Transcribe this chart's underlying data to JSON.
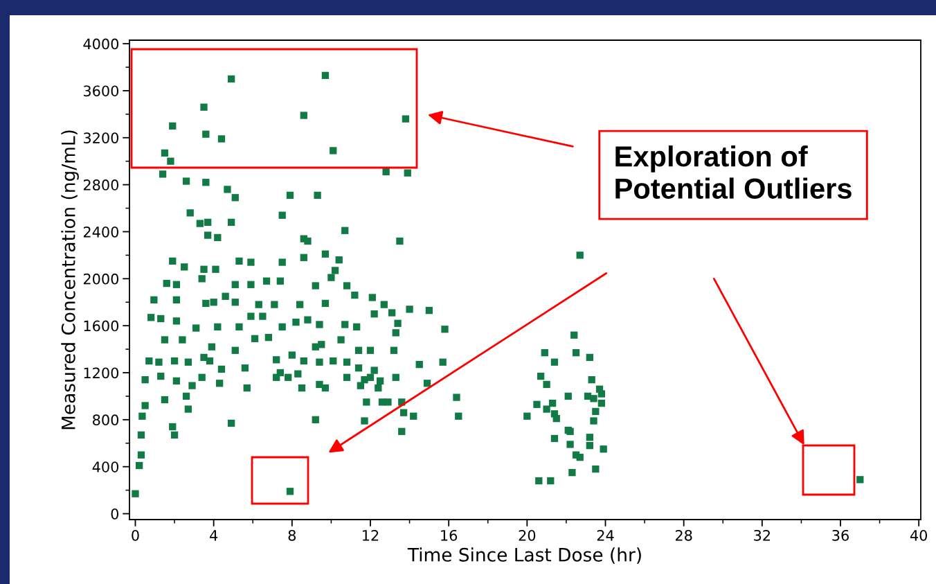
{
  "chart_data": {
    "type": "scatter",
    "xlabel": "Time Since Last Dose (hr)",
    "ylabel": "Measured Concentration (ng/mL)",
    "xlim": [
      -0.3,
      40.1
    ],
    "ylim": [
      -50,
      4030
    ],
    "xticks": [
      0,
      4,
      8,
      12,
      16,
      20,
      24,
      28,
      32,
      36,
      40
    ],
    "yticks": [
      0,
      400,
      800,
      1200,
      1600,
      2000,
      2400,
      2800,
      3200,
      3600,
      4000
    ],
    "grid": false,
    "legend": false,
    "marker": "square",
    "annotations": [
      "Exploration of Potential Outliers"
    ],
    "series": [
      {
        "color": "#117a45",
        "x": [
          4.9,
          9.7,
          3.5,
          1.9,
          3.6,
          4.4,
          8.6,
          13.8,
          1.5,
          1.8,
          10.1,
          1.4,
          12.8,
          13.9,
          2.6,
          3.6,
          4.7,
          5.1,
          7.9,
          9.3,
          2.8,
          3.3,
          3.7,
          4.9,
          7.5,
          10.7,
          3.7,
          4.2,
          8.6,
          8.8,
          13.5,
          22.7,
          1.9,
          2.5,
          3.5,
          5.3,
          5.9,
          7.5,
          8.6,
          9.7,
          10.4,
          4.1,
          3.4,
          2.1,
          1.6,
          10.2,
          10.0,
          6.7,
          7.4,
          5.9,
          5.1,
          9.2,
          10.8,
          0.95,
          2.1,
          3.6,
          4.0,
          4.6,
          5.1,
          6.3,
          7.1,
          8.4,
          9.7,
          11.2,
          12.1,
          12.7,
          13.1,
          12.2,
          14.0,
          15.0,
          15.8,
          0.8,
          1.3,
          2.1,
          3.1,
          4.2,
          5.3,
          5.9,
          6.5,
          7.5,
          8.2,
          8.8,
          9.4,
          10.7,
          11.3,
          13.4,
          2.4,
          1.5,
          3.9,
          5.1,
          6.1,
          6.8,
          9.2,
          9.5,
          10.5,
          11.4,
          12.0,
          13.2,
          13.3,
          0.7,
          1.2,
          2.0,
          2.7,
          3.5,
          3.8,
          4.4,
          5.6,
          7.2,
          8.0,
          8.3,
          7.4,
          8.6,
          9.4,
          10.1,
          10.8,
          11.4,
          11.7,
          12.2,
          12.5,
          13.3,
          14.5,
          15.7,
          0.5,
          1.3,
          2.1,
          2.9,
          3.4,
          4.3,
          5.7,
          7.2,
          7.8,
          8.5,
          9.4,
          9.7,
          10.8,
          11.5,
          12.0,
          12.4,
          12.9,
          13.6,
          14.9,
          16.4,
          1.5,
          2.6,
          11.8,
          12.6,
          0.5,
          0.35,
          2.7,
          13.7,
          14.2,
          16.5,
          1.9,
          2.0,
          4.9,
          9.2,
          11.7,
          0.3,
          0.3,
          0.2,
          0.0,
          7.9,
          13.6,
          22.4,
          22.5,
          20.9,
          23.2,
          21.4,
          20.7,
          21.0,
          23.3,
          23.7,
          23.8,
          22.1,
          23.1,
          23.4,
          23.8,
          20.5,
          21.3,
          21.0,
          21.4,
          21.5,
          20.0,
          23.5,
          23.4,
          22.1,
          22.2,
          21.4,
          22.2,
          23.2,
          23.2,
          23.9,
          22.7,
          22.5,
          23.5,
          22.3,
          20.6,
          21.2,
          37.0
        ],
        "values": [
          3700,
          3730,
          3460,
          3300,
          3230,
          3190,
          3390,
          3360,
          3070,
          3000,
          3090,
          2890,
          2910,
          2900,
          2830,
          2820,
          2760,
          2690,
          2710,
          2710,
          2560,
          2470,
          2480,
          2480,
          2540,
          2410,
          2370,
          2350,
          2340,
          2320,
          2320,
          2200,
          2150,
          2100,
          2080,
          2150,
          2140,
          2140,
          2180,
          2210,
          2160,
          2080,
          2000,
          1950,
          1960,
          2070,
          2010,
          1980,
          1980,
          1950,
          1950,
          1940,
          1940,
          1820,
          1820,
          1790,
          1800,
          1850,
          1800,
          1780,
          1780,
          1780,
          1790,
          1860,
          1840,
          1780,
          1710,
          1700,
          1740,
          1730,
          1570,
          1670,
          1660,
          1640,
          1580,
          1590,
          1590,
          1680,
          1680,
          1590,
          1630,
          1650,
          1610,
          1610,
          1590,
          1620,
          1480,
          1480,
          1420,
          1390,
          1490,
          1500,
          1420,
          1440,
          1480,
          1390,
          1390,
          1390,
          1540,
          1300,
          1290,
          1300,
          1290,
          1330,
          1300,
          1230,
          1240,
          1310,
          1350,
          1190,
          1200,
          1300,
          1290,
          1300,
          1290,
          1240,
          1140,
          1220,
          1130,
          1160,
          1270,
          1290,
          1140,
          1170,
          1130,
          1090,
          1160,
          1110,
          1070,
          1160,
          1160,
          1070,
          1100,
          1070,
          1160,
          1090,
          1160,
          1070,
          950,
          950,
          1110,
          990,
          970,
          1000,
          950,
          950,
          920,
          830,
          890,
          860,
          830,
          830,
          740,
          670,
          770,
          800,
          790,
          670,
          500,
          410,
          170,
          190,
          700,
          1520,
          1370,
          1370,
          1330,
          1290,
          1170,
          1100,
          1140,
          1060,
          1020,
          1000,
          1000,
          980,
          940,
          930,
          940,
          890,
          850,
          810,
          830,
          870,
          790,
          710,
          700,
          640,
          590,
          650,
          580,
          550,
          480,
          500,
          380,
          350,
          280,
          280,
          290
        ]
      }
    ]
  }
}
